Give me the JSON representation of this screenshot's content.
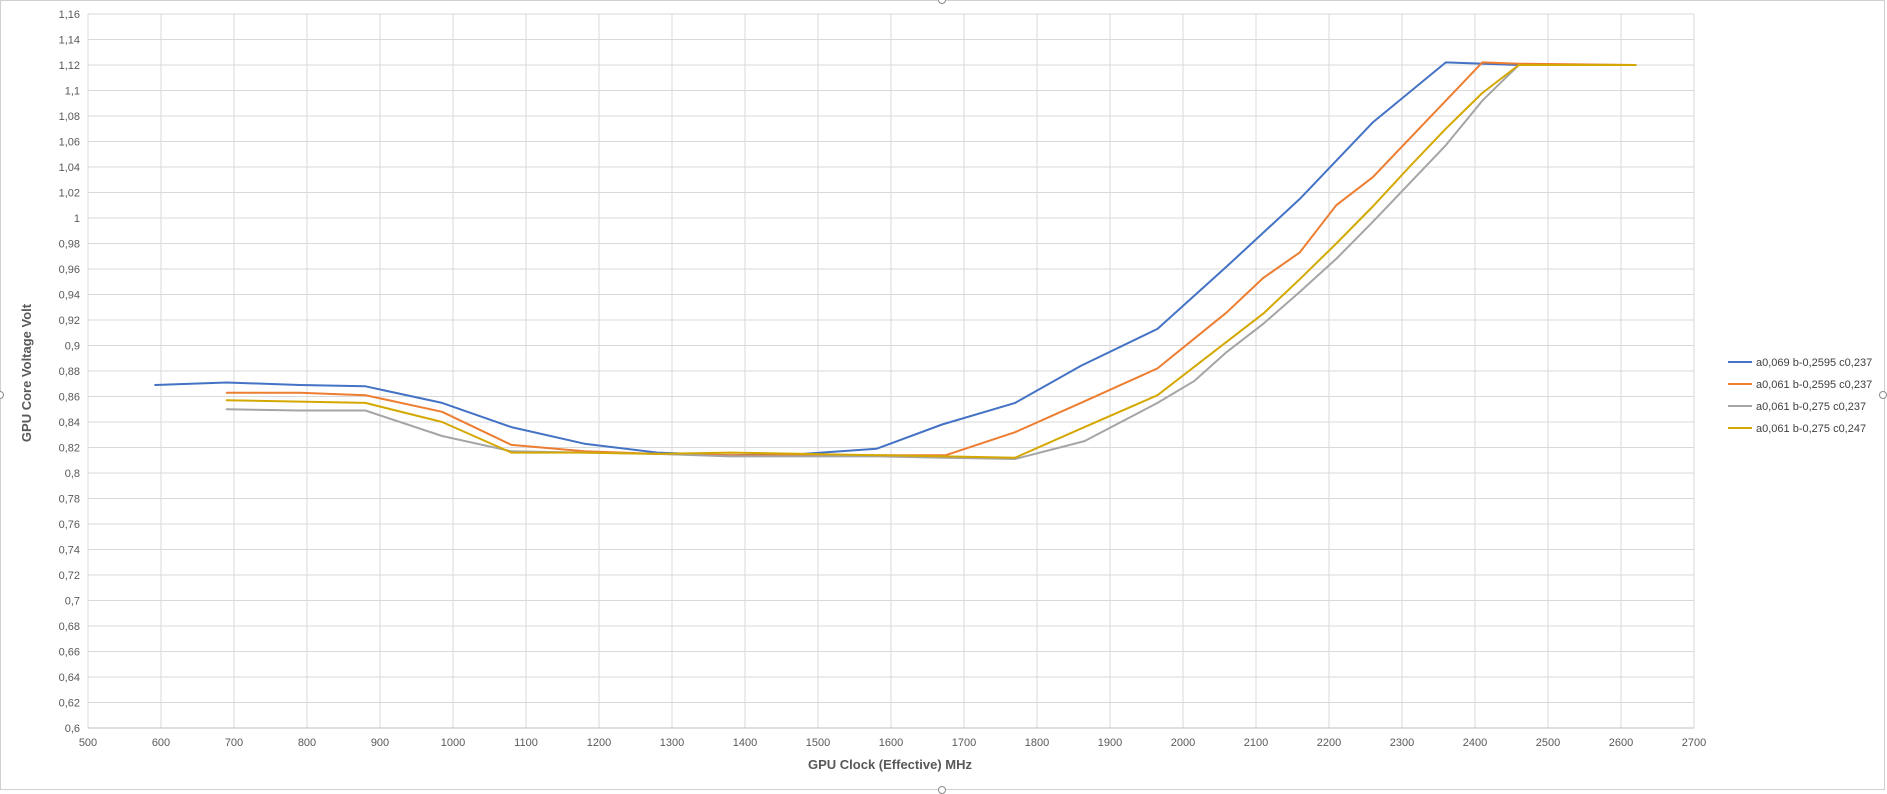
{
  "chart_data": {
    "type": "line",
    "title": "",
    "xlabel": "GPU Clock (Effective) MHz",
    "ylabel": "GPU Core Voltage  Volt",
    "xlim": [
      500,
      2700
    ],
    "ylim": [
      0.6,
      1.16
    ],
    "x_ticks": [
      "500",
      "600",
      "700",
      "800",
      "900",
      "1000",
      "1100",
      "1200",
      "1300",
      "1400",
      "1500",
      "1600",
      "1700",
      "1800",
      "1900",
      "2000",
      "2100",
      "2200",
      "2300",
      "2400",
      "2500",
      "2600",
      "2700"
    ],
    "y_ticks": [
      "0,6",
      "0,62",
      "0,64",
      "0,66",
      "0,68",
      "0,7",
      "0,72",
      "0,74",
      "0,76",
      "0,78",
      "0,8",
      "0,82",
      "0,84",
      "0,86",
      "0,88",
      "0,9",
      "0,92",
      "0,94",
      "0,96",
      "0,98",
      "1",
      "1,02",
      "1,04",
      "1,06",
      "1,08",
      "1,1",
      "1,12",
      "1,14",
      "1,16"
    ],
    "grid": true,
    "legend_position": "right",
    "series": [
      {
        "name": "a0,069 b-0,2595 c0,237",
        "color": "#4472C4",
        "x": [
          592,
          690,
          790,
          880,
          985,
          1080,
          1180,
          1280,
          1380,
          1480,
          1580,
          1670,
          1770,
          1860,
          1965,
          2060,
          2160,
          2260,
          2360,
          2460,
          2620
        ],
        "y": [
          0.869,
          0.871,
          0.869,
          0.868,
          0.855,
          0.836,
          0.823,
          0.816,
          0.814,
          0.815,
          0.819,
          0.838,
          0.855,
          0.884,
          0.913,
          0.962,
          1.015,
          1.075,
          1.122,
          1.12,
          1.12
        ]
      },
      {
        "name": "a0,061 b-0,2595 c0,237",
        "color": "#ED7D31",
        "x": [
          690,
          790,
          880,
          985,
          1080,
          1180,
          1280,
          1380,
          1480,
          1580,
          1675,
          1770,
          1860,
          1965,
          2060,
          2110,
          2160,
          2210,
          2260,
          2310,
          2360,
          2410,
          2460,
          2620
        ],
        "y": [
          0.863,
          0.863,
          0.861,
          0.848,
          0.822,
          0.817,
          0.815,
          0.814,
          0.814,
          0.814,
          0.814,
          0.832,
          0.855,
          0.882,
          0.926,
          0.953,
          0.973,
          1.01,
          1.032,
          1.062,
          1.092,
          1.122,
          1.121,
          1.12
        ]
      },
      {
        "name": "a0,061 b-0,275 c0,237",
        "color": "#A5A5A5",
        "x": [
          690,
          790,
          880,
          985,
          1080,
          1180,
          1280,
          1380,
          1480,
          1580,
          1675,
          1770,
          1865,
          1965,
          2015,
          2060,
          2110,
          2160,
          2210,
          2260,
          2310,
          2360,
          2410,
          2460,
          2620
        ],
        "y": [
          0.85,
          0.849,
          0.849,
          0.829,
          0.817,
          0.816,
          0.815,
          0.813,
          0.813,
          0.813,
          0.812,
          0.811,
          0.825,
          0.855,
          0.872,
          0.895,
          0.917,
          0.942,
          0.968,
          0.997,
          1.027,
          1.057,
          1.092,
          1.12,
          1.12
        ]
      },
      {
        "name": "a0,061 b-0,275 c0,247",
        "color": "#D4A800",
        "x": [
          690,
          790,
          880,
          985,
          1080,
          1180,
          1280,
          1380,
          1480,
          1580,
          1675,
          1770,
          1865,
          1965,
          2060,
          2110,
          2160,
          2210,
          2260,
          2310,
          2360,
          2410,
          2460,
          2620
        ],
        "y": [
          0.857,
          0.856,
          0.855,
          0.84,
          0.816,
          0.816,
          0.815,
          0.816,
          0.815,
          0.814,
          0.813,
          0.812,
          0.836,
          0.861,
          0.903,
          0.925,
          0.952,
          0.98,
          1.009,
          1.04,
          1.07,
          1.098,
          1.12,
          1.12
        ]
      }
    ]
  }
}
